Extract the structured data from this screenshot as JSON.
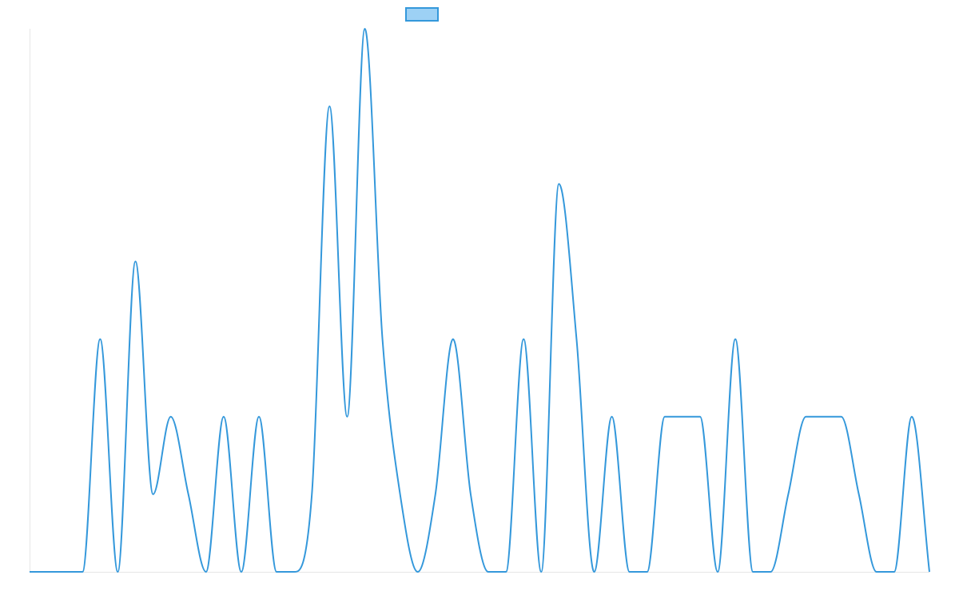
{
  "chart_data": {
    "type": "line",
    "title": "",
    "xlabel": "",
    "ylabel": "",
    "grid": false,
    "legend": {
      "position": "top-center",
      "entries": [
        {
          "label": ""
        }
      ]
    },
    "x": [
      0,
      1,
      2,
      3,
      4,
      5,
      6,
      7,
      8,
      9,
      10,
      11,
      12,
      13,
      14,
      15,
      16,
      17,
      18,
      19,
      20,
      21,
      22,
      23,
      24,
      25,
      26,
      27,
      28,
      29,
      30,
      31,
      32,
      33,
      34,
      35,
      36,
      37,
      38,
      39,
      40,
      41,
      42,
      43,
      44,
      45,
      46,
      47,
      48,
      49,
      50,
      51
    ],
    "xlim": [
      0,
      51
    ],
    "ylim": [
      0,
      7
    ],
    "series": [
      {
        "name": "",
        "color": "#3498db",
        "fill": "#9dd1f5",
        "values": [
          0,
          0,
          0,
          0,
          3,
          0,
          4,
          1,
          2,
          1,
          0,
          2,
          0,
          2,
          0,
          0,
          1,
          6,
          2,
          7,
          3,
          1,
          0,
          1,
          3,
          1,
          0,
          0,
          3,
          0,
          5,
          3,
          0,
          2,
          0,
          0,
          2,
          2,
          2,
          0,
          3,
          0,
          0,
          1,
          2,
          2,
          2,
          1,
          0,
          0,
          2,
          0
        ]
      }
    ]
  }
}
